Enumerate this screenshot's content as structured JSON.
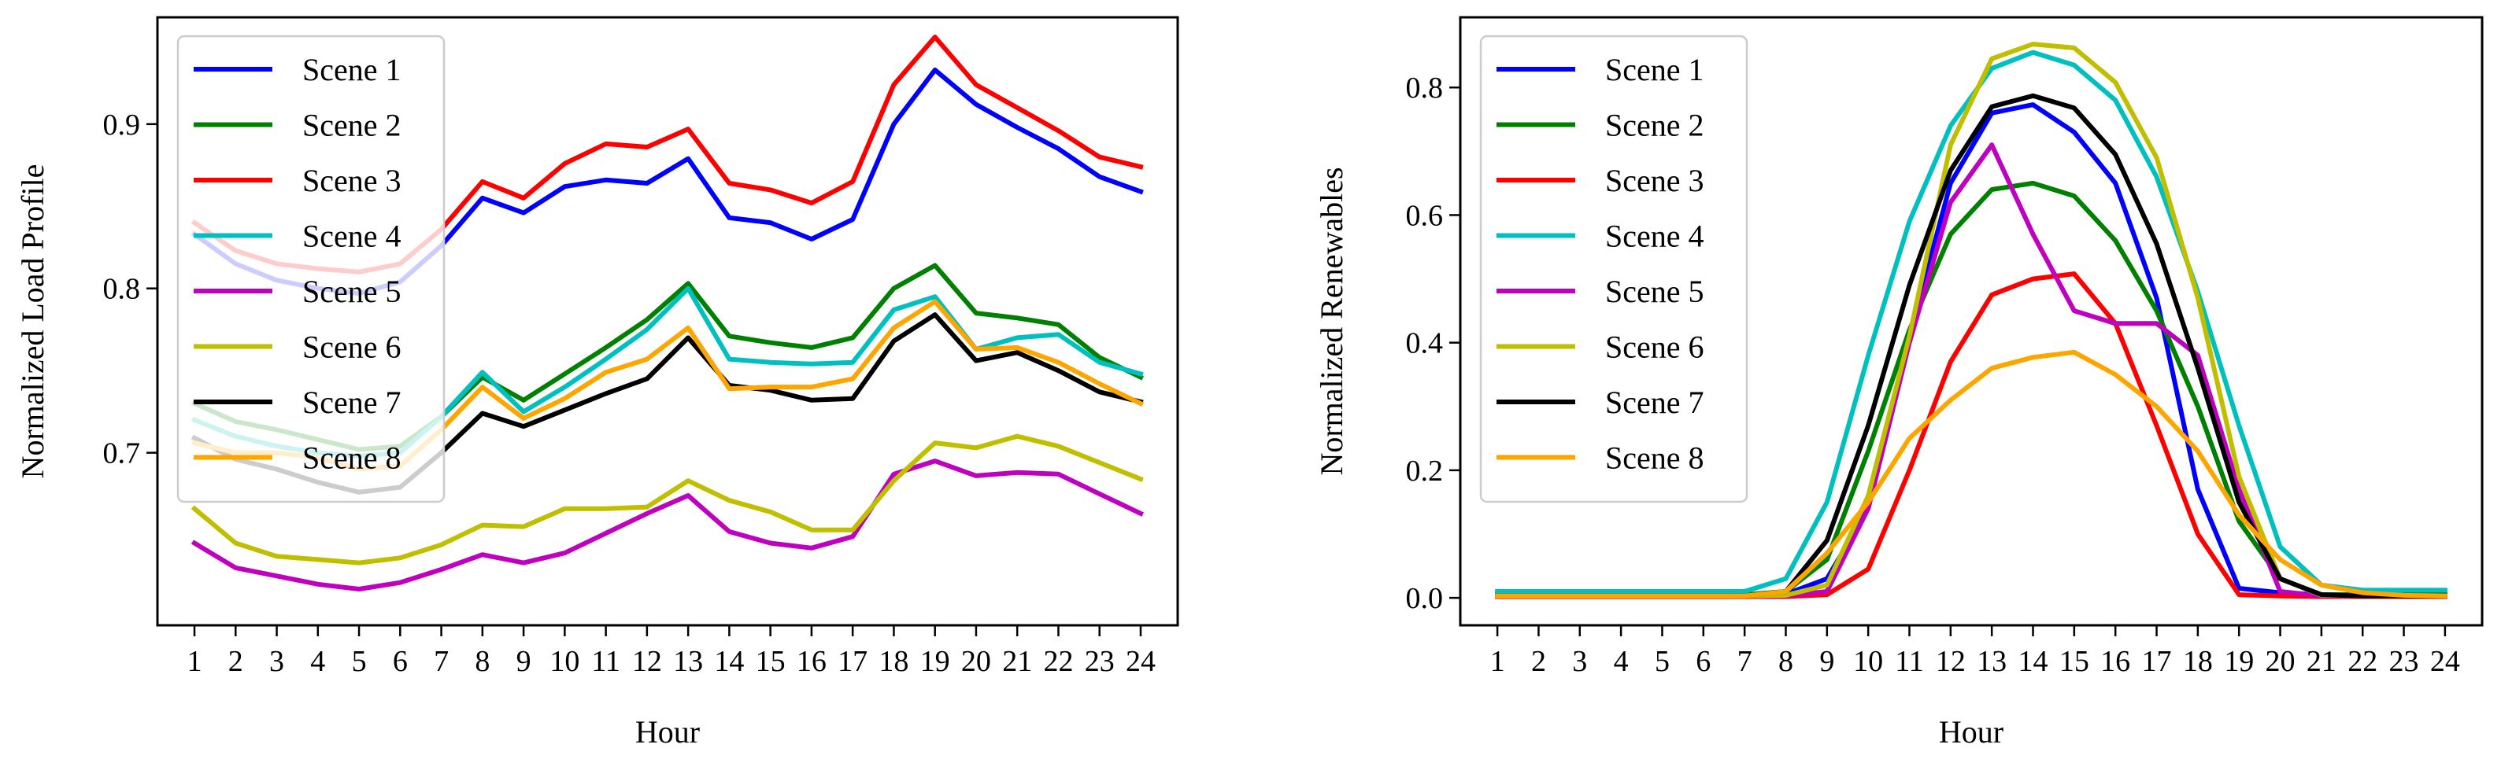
{
  "chart_data": [
    {
      "type": "line",
      "title": "",
      "xlabel": "Hour",
      "ylabel": "Normalized Load Profile",
      "x": [
        1,
        2,
        3,
        4,
        5,
        6,
        7,
        8,
        9,
        10,
        11,
        12,
        13,
        14,
        15,
        16,
        17,
        18,
        19,
        20,
        21,
        22,
        23,
        24
      ],
      "xticks": [
        "1",
        "2",
        "3",
        "4",
        "5",
        "6",
        "7",
        "8",
        "9",
        "10",
        "11",
        "12",
        "13",
        "14",
        "15",
        "16",
        "17",
        "18",
        "19",
        "20",
        "21",
        "22",
        "23",
        "24"
      ],
      "xlim": [
        0.1,
        24.9
      ],
      "ylim": [
        0.595,
        0.965
      ],
      "yticks": [
        0.7,
        0.8,
        0.9
      ],
      "ytick_labels": [
        "0.7",
        "0.8",
        "0.9"
      ],
      "legend_position": "top-left",
      "series": [
        {
          "name": "Scene 1",
          "color": "#0000ff",
          "values": [
            0.833,
            0.815,
            0.805,
            0.8,
            0.797,
            0.804,
            0.826,
            0.855,
            0.846,
            0.862,
            0.866,
            0.864,
            0.879,
            0.843,
            0.84,
            0.83,
            0.842,
            0.9,
            0.933,
            0.912,
            0.898,
            0.885,
            0.868,
            0.859
          ]
        },
        {
          "name": "Scene 2",
          "color": "#008000",
          "values": [
            0.73,
            0.719,
            0.714,
            0.708,
            0.702,
            0.704,
            0.722,
            0.746,
            0.732,
            0.748,
            0.764,
            0.781,
            0.803,
            0.771,
            0.767,
            0.764,
            0.77,
            0.8,
            0.814,
            0.785,
            0.782,
            0.778,
            0.758,
            0.746
          ]
        },
        {
          "name": "Scene 3",
          "color": "#ff0000",
          "values": [
            0.84,
            0.823,
            0.815,
            0.812,
            0.81,
            0.815,
            0.836,
            0.865,
            0.855,
            0.876,
            0.888,
            0.886,
            0.897,
            0.864,
            0.86,
            0.852,
            0.865,
            0.924,
            0.953,
            0.924,
            0.91,
            0.896,
            0.88,
            0.874
          ]
        },
        {
          "name": "Scene 4",
          "color": "#00bfbf",
          "values": [
            0.72,
            0.71,
            0.704,
            0.7,
            0.698,
            0.7,
            0.722,
            0.749,
            0.725,
            0.74,
            0.757,
            0.775,
            0.8,
            0.757,
            0.755,
            0.754,
            0.755,
            0.787,
            0.795,
            0.763,
            0.77,
            0.772,
            0.755,
            0.748
          ]
        },
        {
          "name": "Scene 5",
          "color": "#bf00bf",
          "values": [
            0.645,
            0.63,
            0.625,
            0.62,
            0.617,
            0.621,
            0.629,
            0.638,
            0.633,
            0.639,
            0.651,
            0.663,
            0.674,
            0.652,
            0.645,
            0.642,
            0.649,
            0.687,
            0.695,
            0.686,
            0.688,
            0.687,
            0.675,
            0.663
          ]
        },
        {
          "name": "Scene 6",
          "color": "#bfbf00",
          "values": [
            0.666,
            0.645,
            0.637,
            0.635,
            0.633,
            0.636,
            0.644,
            0.656,
            0.655,
            0.666,
            0.666,
            0.667,
            0.683,
            0.671,
            0.664,
            0.653,
            0.653,
            0.683,
            0.706,
            0.703,
            0.71,
            0.704,
            0.694,
            0.684
          ]
        },
        {
          "name": "Scene 7",
          "color": "#000000",
          "values": [
            0.709,
            0.696,
            0.69,
            0.682,
            0.676,
            0.679,
            0.7,
            0.724,
            0.716,
            0.726,
            0.736,
            0.745,
            0.77,
            0.741,
            0.738,
            0.732,
            0.733,
            0.768,
            0.784,
            0.756,
            0.761,
            0.75,
            0.737,
            0.731
          ]
        },
        {
          "name": "Scene 8",
          "color": "#ffa500",
          "values": [
            0.706,
            0.7,
            0.7,
            0.697,
            0.69,
            0.692,
            0.714,
            0.74,
            0.721,
            0.733,
            0.749,
            0.757,
            0.776,
            0.739,
            0.74,
            0.74,
            0.745,
            0.776,
            0.792,
            0.763,
            0.764,
            0.755,
            0.742,
            0.73
          ]
        }
      ]
    },
    {
      "type": "line",
      "title": "",
      "xlabel": "Hour",
      "ylabel": "Normalized Renewables",
      "x": [
        1,
        2,
        3,
        4,
        5,
        6,
        7,
        8,
        9,
        10,
        11,
        12,
        13,
        14,
        15,
        16,
        17,
        18,
        19,
        20,
        21,
        22,
        23,
        24
      ],
      "xticks": [
        "1",
        "2",
        "3",
        "4",
        "5",
        "6",
        "7",
        "8",
        "9",
        "10",
        "11",
        "12",
        "13",
        "14",
        "15",
        "16",
        "17",
        "18",
        "19",
        "20",
        "21",
        "22",
        "23",
        "24"
      ],
      "xlim": [
        0.1,
        24.9
      ],
      "ylim": [
        -0.043,
        0.91
      ],
      "yticks": [
        0.0,
        0.2,
        0.4,
        0.6,
        0.8
      ],
      "ytick_labels": [
        "0.0",
        "0.2",
        "0.4",
        "0.6",
        "0.8"
      ],
      "legend_position": "top-left",
      "series": [
        {
          "name": "Scene 1",
          "color": "#0000ff",
          "values": [
            0.005,
            0.005,
            0.005,
            0.005,
            0.005,
            0.005,
            0.005,
            0.006,
            0.03,
            0.14,
            0.41,
            0.65,
            0.76,
            0.773,
            0.73,
            0.65,
            0.47,
            0.17,
            0.015,
            0.008,
            0.005,
            0.005,
            0.005,
            0.005
          ]
        },
        {
          "name": "Scene 2",
          "color": "#008000",
          "values": [
            0.005,
            0.005,
            0.005,
            0.005,
            0.005,
            0.005,
            0.005,
            0.01,
            0.06,
            0.23,
            0.42,
            0.57,
            0.64,
            0.65,
            0.63,
            0.56,
            0.45,
            0.3,
            0.12,
            0.03,
            0.005,
            0.005,
            0.005,
            0.005
          ]
        },
        {
          "name": "Scene 3",
          "color": "#ff0000",
          "values": [
            0.002,
            0.002,
            0.002,
            0.002,
            0.002,
            0.002,
            0.002,
            0.002,
            0.005,
            0.045,
            0.2,
            0.37,
            0.475,
            0.5,
            0.508,
            0.43,
            0.27,
            0.1,
            0.005,
            0.003,
            0.002,
            0.002,
            0.002,
            0.002
          ]
        },
        {
          "name": "Scene 4",
          "color": "#00bfbf",
          "values": [
            0.01,
            0.01,
            0.01,
            0.01,
            0.01,
            0.01,
            0.01,
            0.03,
            0.15,
            0.38,
            0.59,
            0.74,
            0.83,
            0.855,
            0.835,
            0.78,
            0.66,
            0.48,
            0.27,
            0.08,
            0.02,
            0.012,
            0.012,
            0.012
          ]
        },
        {
          "name": "Scene 5",
          "color": "#bf00bf",
          "values": [
            0.003,
            0.003,
            0.003,
            0.003,
            0.003,
            0.003,
            0.003,
            0.003,
            0.01,
            0.14,
            0.4,
            0.62,
            0.71,
            0.57,
            0.45,
            0.43,
            0.43,
            0.38,
            0.17,
            0.01,
            0.003,
            0.003,
            0.003,
            0.003
          ]
        },
        {
          "name": "Scene 6",
          "color": "#bfbf00",
          "values": [
            0.003,
            0.003,
            0.003,
            0.003,
            0.003,
            0.003,
            0.003,
            0.004,
            0.02,
            0.16,
            0.41,
            0.71,
            0.845,
            0.868,
            0.862,
            0.808,
            0.69,
            0.47,
            0.19,
            0.03,
            0.004,
            0.003,
            0.003,
            0.003
          ]
        },
        {
          "name": "Scene 7",
          "color": "#000000",
          "values": [
            0.003,
            0.003,
            0.003,
            0.003,
            0.003,
            0.003,
            0.003,
            0.01,
            0.09,
            0.27,
            0.49,
            0.67,
            0.77,
            0.787,
            0.768,
            0.695,
            0.555,
            0.36,
            0.15,
            0.03,
            0.005,
            0.003,
            0.003,
            0.003
          ]
        },
        {
          "name": "Scene 8",
          "color": "#ffa500",
          "values": [
            0.003,
            0.003,
            0.003,
            0.003,
            0.003,
            0.003,
            0.003,
            0.01,
            0.07,
            0.15,
            0.25,
            0.31,
            0.36,
            0.377,
            0.385,
            0.35,
            0.3,
            0.23,
            0.13,
            0.06,
            0.02,
            0.008,
            0.004,
            0.003
          ]
        }
      ]
    }
  ]
}
